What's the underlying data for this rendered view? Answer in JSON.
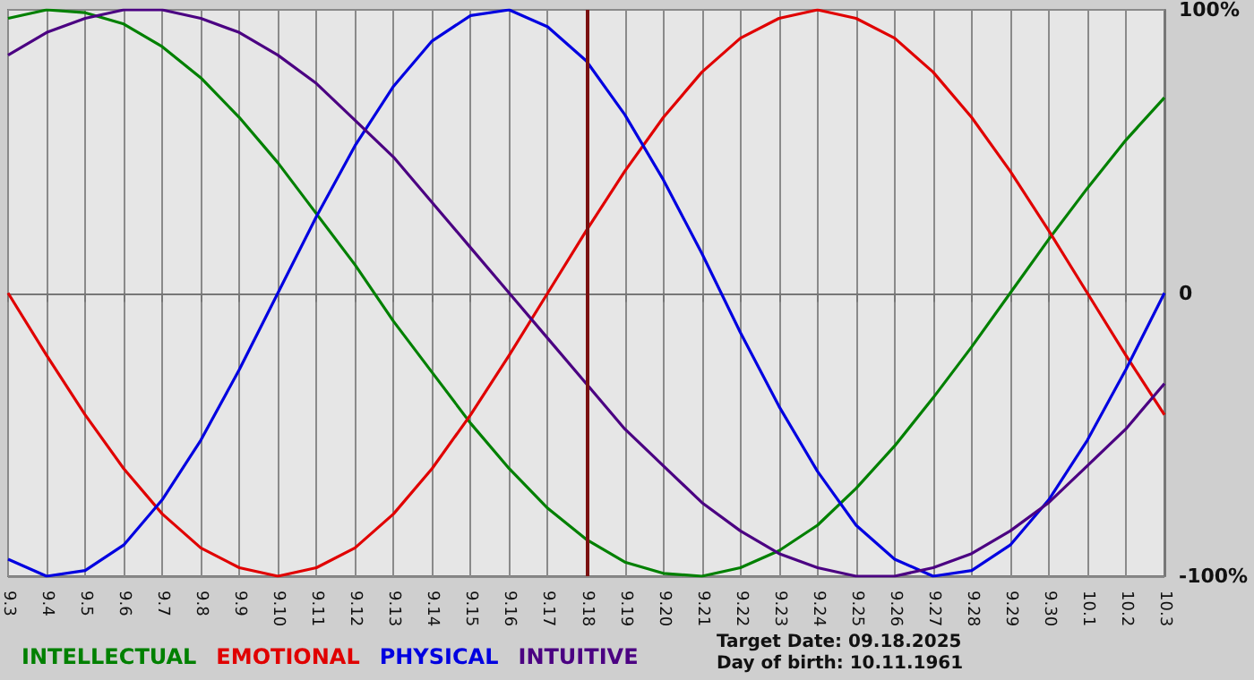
{
  "chart_data": {
    "type": "line",
    "categories": [
      "9.3",
      "9.4",
      "9.5",
      "9.6",
      "9.7",
      "9.8",
      "9.9",
      "9.10",
      "9.11",
      "9.12",
      "9.13",
      "9.14",
      "9.15",
      "9.16",
      "9.17",
      "9.18",
      "9.19",
      "9.20",
      "9.21",
      "9.22",
      "9.23",
      "9.24",
      "9.25",
      "9.26",
      "9.27",
      "9.28",
      "9.29",
      "9.30",
      "10.1",
      "10.2",
      "10.3"
    ],
    "series": [
      {
        "name": "INTELLECTUAL",
        "color": "#008000",
        "values": [
          97,
          100,
          99,
          95,
          87,
          76,
          62,
          46,
          28,
          10,
          -10,
          -28,
          -46,
          -62,
          -76,
          -87,
          -95,
          -99,
          -100,
          -97,
          -91,
          -82,
          -69,
          -54,
          -37,
          -19,
          0,
          19,
          37,
          54,
          69
        ]
      },
      {
        "name": "EMOTIONAL",
        "color": "#e00000",
        "values": [
          0,
          -22,
          -43,
          -62,
          -78,
          -90,
          -97,
          -100,
          -97,
          -90,
          -78,
          -62,
          -43,
          -22,
          0,
          22,
          43,
          62,
          78,
          90,
          97,
          100,
          97,
          90,
          78,
          62,
          43,
          22,
          0,
          -22,
          -43
        ]
      },
      {
        "name": "PHYSICAL",
        "color": "#0000e0",
        "values": [
          -94,
          -100,
          -98,
          -89,
          -73,
          -52,
          -27,
          0,
          27,
          52,
          73,
          89,
          98,
          100,
          94,
          82,
          63,
          40,
          14,
          -14,
          -40,
          -63,
          -82,
          -94,
          -100,
          -98,
          -89,
          -73,
          -52,
          -27,
          0
        ]
      },
      {
        "name": "INTUITIVE",
        "color": "#4b0082",
        "values": [
          84,
          92,
          97,
          100,
          100,
          97,
          92,
          84,
          74,
          61,
          48,
          32,
          16,
          0,
          -16,
          -32,
          -48,
          -61,
          -74,
          -84,
          -92,
          -97,
          -100,
          -100,
          -97,
          -92,
          -84,
          -74,
          -61,
          -48,
          -32
        ]
      }
    ],
    "ylim": [
      -100,
      100
    ],
    "yticks": [
      {
        "value": -100,
        "label": "-100%"
      },
      0,
      {
        "value": 100,
        "label": "100%"
      }
    ],
    "ref_lines": [
      {
        "axis": "x",
        "value": "9.18",
        "color": "#7a1010"
      }
    ],
    "annotations": [
      "Target Date: 09.18.2025",
      "Day of birth: 10.11.1961"
    ],
    "grid": true,
    "legend": "bottom left",
    "marker": "none",
    "line_style": "solid"
  }
}
